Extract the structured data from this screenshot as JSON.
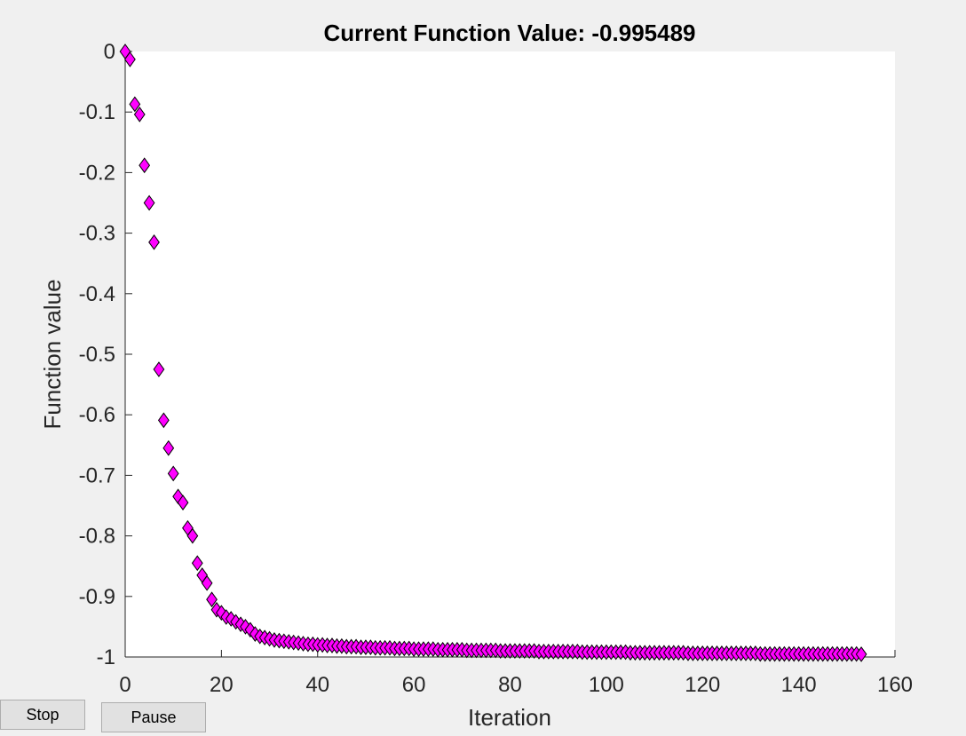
{
  "buttons": {
    "stop_label": "Stop",
    "pause_label": "Pause"
  },
  "colors": {
    "marker_fill": "#ff00ff",
    "marker_stroke": "#000000",
    "plot_bg": "#ffffff",
    "figure_bg": "#f0f0f0"
  },
  "chart_data": {
    "type": "scatter",
    "title": "Current Function Value: -0.995489",
    "xlabel": "Iteration",
    "ylabel": "Function value",
    "xlim": [
      0,
      160
    ],
    "ylim": [
      -1,
      0
    ],
    "grid": false,
    "marker": "diamond",
    "x_ticks": [
      0,
      20,
      40,
      60,
      80,
      100,
      120,
      140,
      160
    ],
    "x_tick_labels": [
      "0",
      "20",
      "40",
      "60",
      "80",
      "100",
      "120",
      "140",
      "160"
    ],
    "y_ticks": [
      0,
      -0.1,
      -0.2,
      -0.3,
      -0.4,
      -0.5,
      -0.6,
      -0.7,
      -0.8,
      -0.9,
      -1
    ],
    "y_tick_labels": [
      "0",
      "-0.1",
      "-0.2",
      "-0.3",
      "-0.4",
      "-0.5",
      "-0.6",
      "-0.7",
      "-0.8",
      "-0.9",
      "-1"
    ],
    "series": [
      {
        "name": "Function value",
        "x": [
          0,
          1,
          2,
          3,
          4,
          5,
          6,
          7,
          8,
          9,
          10,
          11,
          12,
          13,
          14,
          15,
          16,
          17,
          18,
          19,
          20,
          21,
          22,
          23,
          24,
          25,
          26,
          27,
          28,
          29,
          30,
          31,
          32,
          33,
          34,
          35,
          36,
          37,
          38,
          39,
          40,
          41,
          42,
          43,
          44,
          45,
          46,
          47,
          48,
          49,
          50,
          51,
          52,
          53,
          54,
          55,
          56,
          57,
          58,
          59,
          60,
          61,
          62,
          63,
          64,
          65,
          66,
          67,
          68,
          69,
          70,
          71,
          72,
          73,
          74,
          75,
          76,
          77,
          78,
          79,
          80,
          81,
          82,
          83,
          84,
          85,
          86,
          87,
          88,
          89,
          90,
          91,
          92,
          93,
          94,
          95,
          96,
          97,
          98,
          99,
          100,
          101,
          102,
          103,
          104,
          105,
          106,
          107,
          108,
          109,
          110,
          111,
          112,
          113,
          114,
          115,
          116,
          117,
          118,
          119,
          120,
          121,
          122,
          123,
          124,
          125,
          126,
          127,
          128,
          129,
          130,
          131,
          132,
          133,
          134,
          135,
          136,
          137,
          138,
          139,
          140,
          141,
          142,
          143,
          144,
          145,
          146,
          147,
          148,
          149,
          150,
          151,
          152,
          153
        ],
        "y": [
          0,
          -0.013,
          -0.087,
          -0.104,
          -0.188,
          -0.25,
          -0.315,
          -0.525,
          -0.609,
          -0.655,
          -0.697,
          -0.735,
          -0.745,
          -0.787,
          -0.8,
          -0.845,
          -0.865,
          -0.878,
          -0.905,
          -0.922,
          -0.927,
          -0.934,
          -0.937,
          -0.942,
          -0.946,
          -0.95,
          -0.955,
          -0.962,
          -0.966,
          -0.968,
          -0.97,
          -0.972,
          -0.973,
          -0.974,
          -0.975,
          -0.976,
          -0.977,
          -0.978,
          -0.979,
          -0.979,
          -0.98,
          -0.98,
          -0.981,
          -0.981,
          -0.982,
          -0.982,
          -0.983,
          -0.983,
          -0.983,
          -0.984,
          -0.984,
          -0.984,
          -0.985,
          -0.985,
          -0.985,
          -0.985,
          -0.986,
          -0.986,
          -0.986,
          -0.986,
          -0.987,
          -0.987,
          -0.987,
          -0.987,
          -0.987,
          -0.988,
          -0.988,
          -0.988,
          -0.988,
          -0.988,
          -0.988,
          -0.989,
          -0.989,
          -0.989,
          -0.989,
          -0.989,
          -0.989,
          -0.989,
          -0.99,
          -0.99,
          -0.99,
          -0.99,
          -0.99,
          -0.99,
          -0.99,
          -0.99,
          -0.991,
          -0.991,
          -0.991,
          -0.991,
          -0.991,
          -0.991,
          -0.991,
          -0.991,
          -0.991,
          -0.992,
          -0.992,
          -0.992,
          -0.992,
          -0.992,
          -0.992,
          -0.992,
          -0.992,
          -0.992,
          -0.992,
          -0.993,
          -0.993,
          -0.993,
          -0.993,
          -0.993,
          -0.993,
          -0.993,
          -0.993,
          -0.993,
          -0.993,
          -0.993,
          -0.993,
          -0.994,
          -0.994,
          -0.994,
          -0.994,
          -0.994,
          -0.994,
          -0.994,
          -0.994,
          -0.994,
          -0.994,
          -0.994,
          -0.994,
          -0.994,
          -0.994,
          -0.994,
          -0.995,
          -0.995,
          -0.995,
          -0.995,
          -0.995,
          -0.995,
          -0.995,
          -0.995,
          -0.995,
          -0.995,
          -0.995,
          -0.995,
          -0.995,
          -0.995,
          -0.995,
          -0.995,
          -0.995,
          -0.995,
          -0.995,
          -0.995,
          -0.995,
          -0.995489
        ]
      }
    ]
  }
}
